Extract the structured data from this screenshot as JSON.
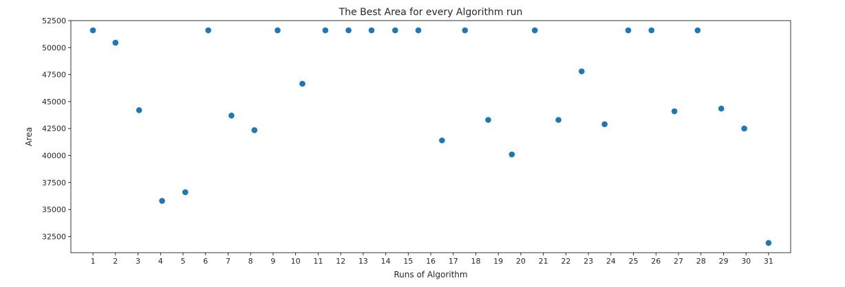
{
  "chart_data": {
    "type": "scatter",
    "title": "The Best Area for every Algorithm run",
    "xlabel": "Runs of Algorithm",
    "ylabel": "Area",
    "xlim": [
      0.02,
      31.98
    ],
    "ylim": [
      31000,
      52500
    ],
    "grid": false,
    "marker_color": "#1f77b4",
    "x_ticks": [
      1,
      2,
      3,
      4,
      5,
      6,
      7,
      8,
      9,
      10,
      11,
      12,
      13,
      14,
      15,
      16,
      17,
      18,
      19,
      20,
      21,
      22,
      23,
      24,
      25,
      26,
      27,
      28,
      29,
      30,
      31
    ],
    "y_ticks": [
      32500,
      35000,
      37500,
      40000,
      42500,
      45000,
      47500,
      50000,
      52500
    ],
    "x": [
      1.0,
      2.0,
      3.05,
      4.07,
      5.1,
      6.12,
      7.15,
      8.17,
      9.2,
      10.3,
      11.32,
      12.35,
      13.37,
      14.42,
      15.45,
      16.5,
      17.52,
      18.55,
      19.6,
      20.62,
      21.67,
      22.7,
      23.72,
      24.77,
      25.8,
      26.82,
      27.85,
      28.9,
      29.92,
      31.0
    ],
    "y": [
      51600,
      50450,
      44200,
      35800,
      36600,
      51600,
      43700,
      42350,
      51600,
      46650,
      51600,
      51600,
      51600,
      51600,
      51600,
      41400,
      51600,
      43300,
      40100,
      51600,
      43300,
      47800,
      42900,
      51600,
      51600,
      44100,
      51600,
      44350,
      42500,
      31900
    ]
  }
}
